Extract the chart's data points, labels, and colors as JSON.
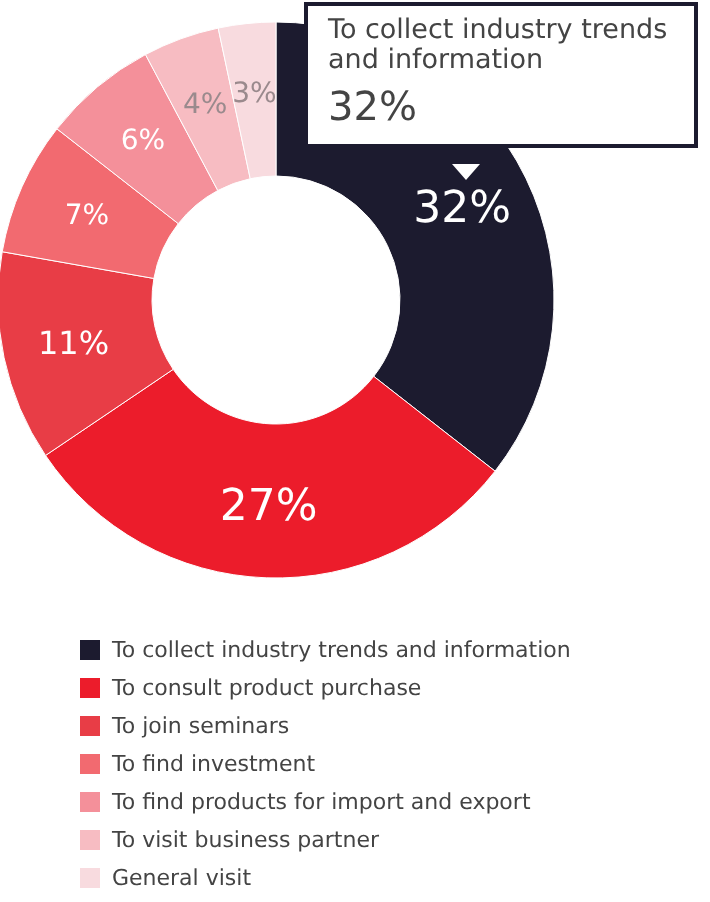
{
  "chart_data": {
    "type": "donut",
    "categories": [
      "To collect industry trends and information",
      "To consult product purchase",
      "To join seminars",
      "To find investment",
      "To find products for import and export",
      "To visit business partner",
      "General visit"
    ],
    "values": [
      32,
      27,
      11,
      7,
      6,
      4,
      3
    ],
    "colors": [
      "#1c1b2f",
      "#ec1c2b",
      "#e83d46",
      "#f26a70",
      "#f4909a",
      "#f7bcc2",
      "#f8dbdf"
    ],
    "value_labels": [
      "32%",
      "27%",
      "11%",
      "7%",
      "6%",
      "4%",
      "3%"
    ],
    "annotations": [
      "To collect industry trends and information",
      "32%"
    ],
    "legend": "bottom"
  }
}
